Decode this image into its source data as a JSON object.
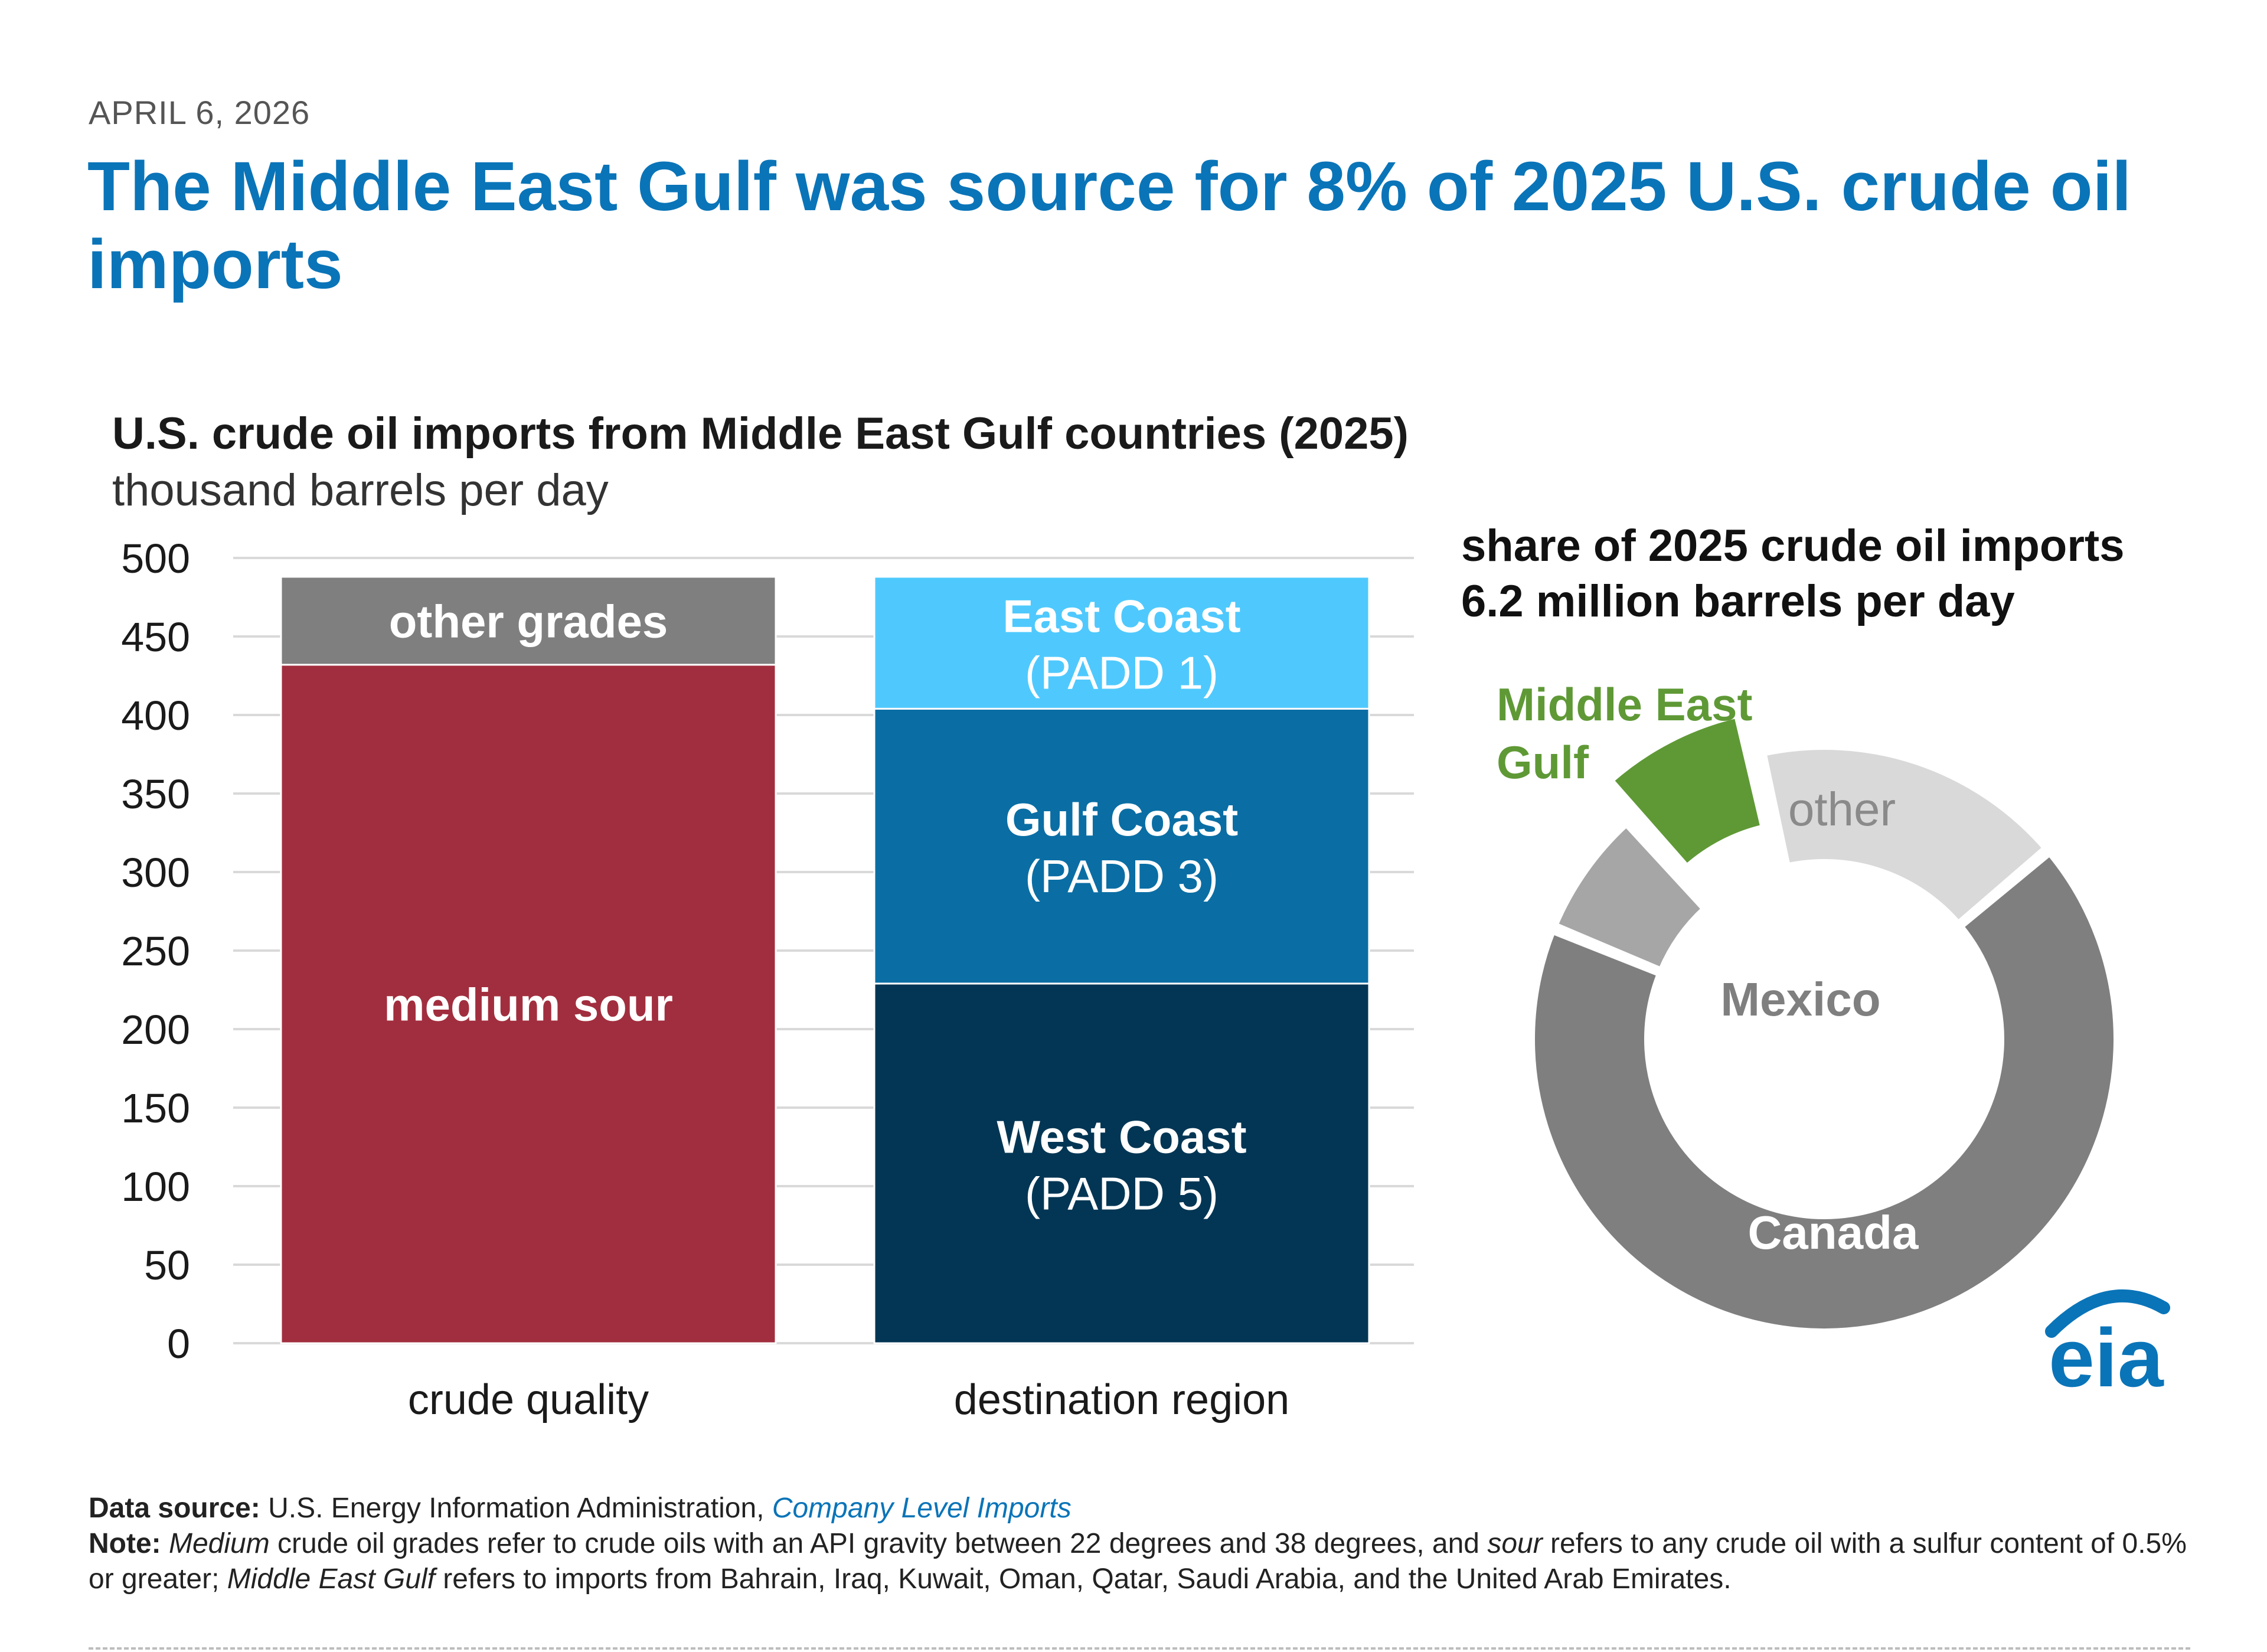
{
  "header": {
    "date": "APRIL 6, 2026",
    "headline": "The Middle East Gulf was source for 8% of 2025 U.S. crude oil imports"
  },
  "chart_data": [
    {
      "type": "bar",
      "stacked": true,
      "title": "U.S. crude oil imports from Middle East Gulf countries (2025)",
      "ylabel": "thousand barrels per day",
      "ylim": [
        0,
        500
      ],
      "yticks": [
        0,
        50,
        100,
        150,
        200,
        250,
        300,
        350,
        400,
        450,
        500
      ],
      "grid": true,
      "categories": [
        "crude quality",
        "destination region"
      ],
      "bars": [
        {
          "category": "crude quality",
          "segments": [
            {
              "name": "medium sour",
              "value": 432,
              "label": "medium sour",
              "sublabel": "",
              "color": "#a12e3e"
            },
            {
              "name": "other grades",
              "value": 56,
              "label": "other grades",
              "sublabel": "",
              "color": "#7f7f7f"
            }
          ]
        },
        {
          "category": "destination region",
          "segments": [
            {
              "name": "West Coast (PADD 5)",
              "value": 229,
              "label": "West Coast",
              "sublabel": "(PADD 5)",
              "color": "#033654"
            },
            {
              "name": "Gulf Coast (PADD 3)",
              "value": 175,
              "label": "Gulf Coast",
              "sublabel": "(PADD 3)",
              "color": "#0a6ea4"
            },
            {
              "name": "East Coast (PADD 1)",
              "value": 84,
              "label": "East Coast",
              "sublabel": "(PADD 1)",
              "color": "#4fc9fd"
            }
          ]
        }
      ]
    },
    {
      "type": "pie",
      "donut": true,
      "title": "share of 2025 crude oil imports",
      "subtitle": "6.2 million barrels per day",
      "slices": [
        {
          "name": "Middle East Gulf",
          "label": "Middle East Gulf",
          "value": 8,
          "color": "#5f9936",
          "exploded": true,
          "label_color": "#5f9936"
        },
        {
          "name": "other",
          "label": "other",
          "value": 17,
          "color": "#d9d9d9",
          "exploded": false,
          "label_color": "#8a8a8a"
        },
        {
          "name": "Canada",
          "label": "Canada",
          "value": 66,
          "color": "#7f7f7f",
          "exploded": false,
          "label_color": "#ffffff"
        },
        {
          "name": "Mexico",
          "label": "Mexico",
          "value": 7,
          "color": "#a6a6a6",
          "exploded": false,
          "label_color": "#7f7f7f"
        }
      ]
    }
  ],
  "footer": {
    "source_label": "Data source:",
    "source_text": " U.S. Energy Information Administration, ",
    "source_link": "Company Level Imports",
    "note_label": "Note:",
    "note_medium": "Medium",
    "note_text_1": " crude oil grades refer to crude oils with an API gravity between 22 degrees and 38 degrees, and ",
    "note_sour": "sour",
    "note_text_2": " refers to any crude oil with a sulfur content of 0.5% or greater; ",
    "note_meg": "Middle East Gulf",
    "note_text_3": " refers to imports from Bahrain, Iraq, Kuwait, Oman, Qatar, Saudi Arabia, and the United Arab Emirates."
  },
  "logo": {
    "text": "eia",
    "color": "#0a74b8"
  }
}
